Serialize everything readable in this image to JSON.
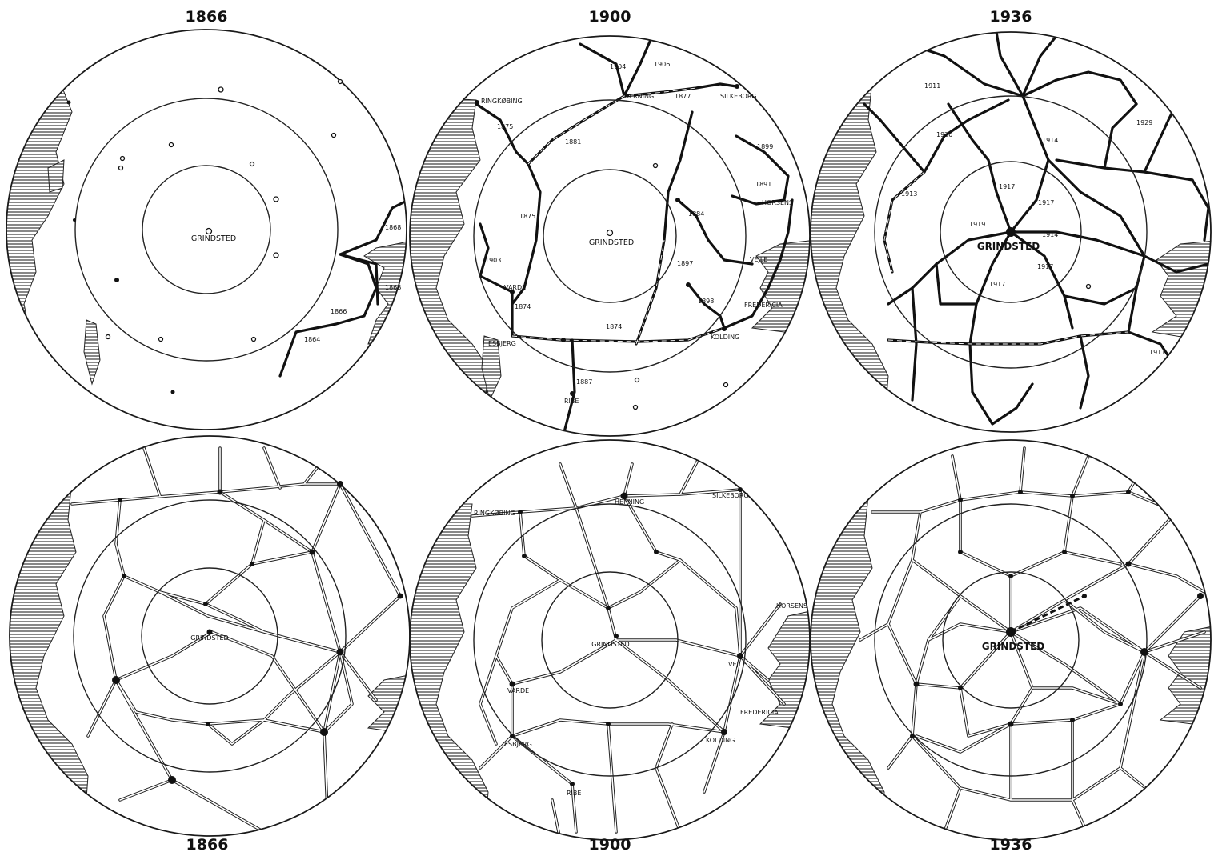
{
  "top_row": {
    "panel_1": {
      "year": "1866",
      "centre": "GRINDSTED",
      "rail_years": [
        "1868",
        "1868",
        "1866",
        "1864"
      ]
    },
    "panel_2": {
      "year": "1900",
      "centre": "GRINDSTED",
      "towns": [
        "RINGKØBING",
        "HERNING",
        "SILKEBORG",
        "HORSENS",
        "VEJLE",
        "FREDERICIA",
        "KOLDING",
        "VARDE",
        "ESBJERG",
        "RIBE"
      ],
      "rail_years": [
        "1904",
        "1906",
        "1877",
        "1875",
        "1881",
        "1899",
        "1891",
        "1884",
        "1875",
        "1903",
        "1897",
        "1898",
        "1874",
        "1874",
        "1887"
      ]
    },
    "panel_3": {
      "year": "1936",
      "centre": "GRINDSTED",
      "rail_years": [
        "1911",
        "1920",
        "1914",
        "1929",
        "1913",
        "1917",
        "1917",
        "1919",
        "1914",
        "1917",
        "1917",
        "1911"
      ]
    }
  },
  "bottom_row": {
    "panel_4": {
      "year": "1866",
      "centre": "GRINDSTED"
    },
    "panel_5": {
      "year": "1900",
      "centre": "GRINDSTED",
      "towns": [
        "RINGKØBING",
        "HERNING",
        "SILKEBORG",
        "HORSENS",
        "VEJLE",
        "VARDE",
        "FREDERICIA",
        "ESBJERG",
        "KOLDING",
        "RIBE"
      ]
    },
    "panel_6": {
      "year": "1936",
      "centre": "GRINDSTED"
    }
  },
  "legend_colors": {
    "ink": "#111111",
    "paper": "#ffffff",
    "sea_hatch": "#555555"
  }
}
